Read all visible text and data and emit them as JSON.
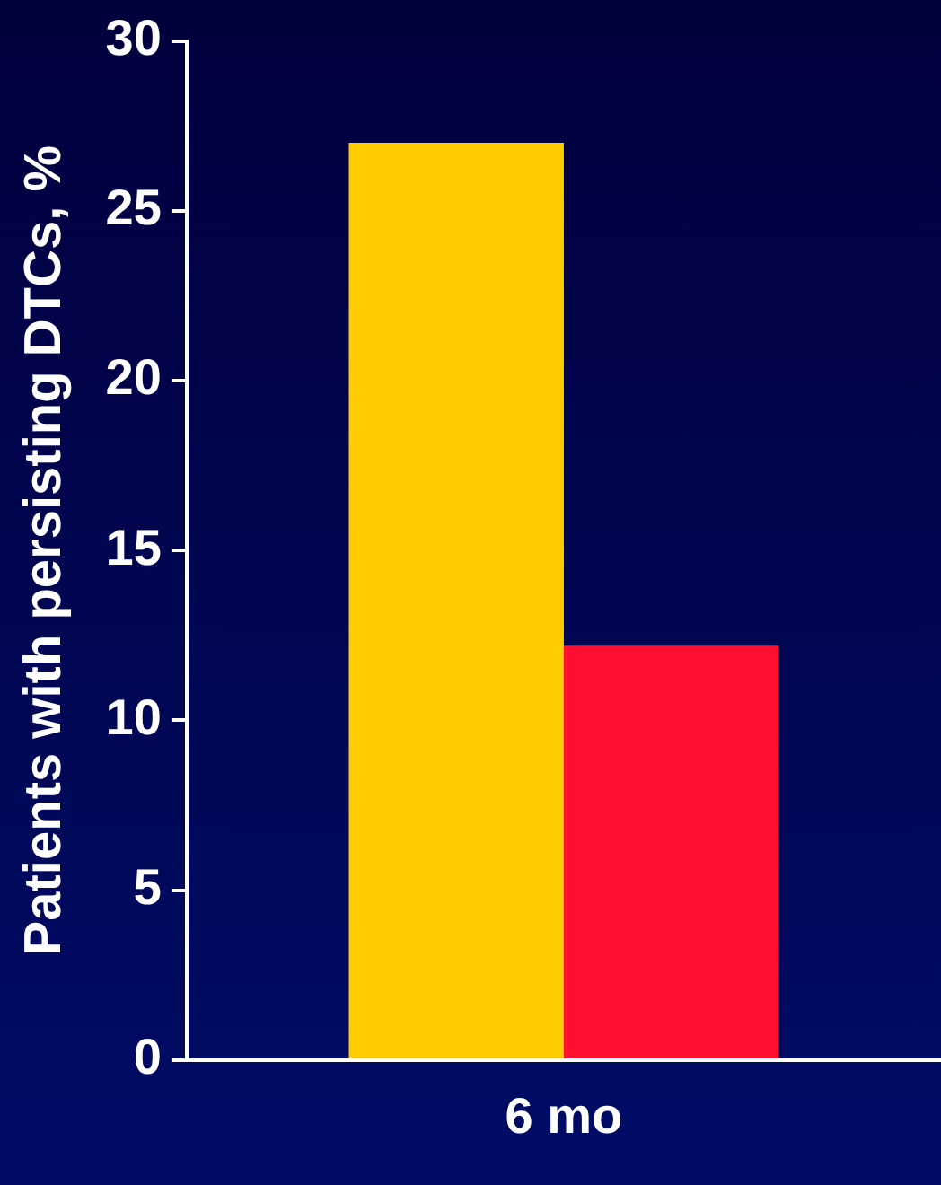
{
  "chart_data": {
    "type": "bar",
    "ylabel": "Patients with persisting DTCs, %",
    "categories": [
      "6 mo"
    ],
    "series": [
      {
        "color": "#ffcc00",
        "values": [
          27
        ]
      },
      {
        "color": "#ff1030",
        "values": [
          12.2
        ]
      }
    ],
    "ylim": [
      0,
      30
    ],
    "yticks": [
      0,
      5,
      10,
      15,
      20,
      25,
      30
    ],
    "grid": false,
    "legend": false
  }
}
